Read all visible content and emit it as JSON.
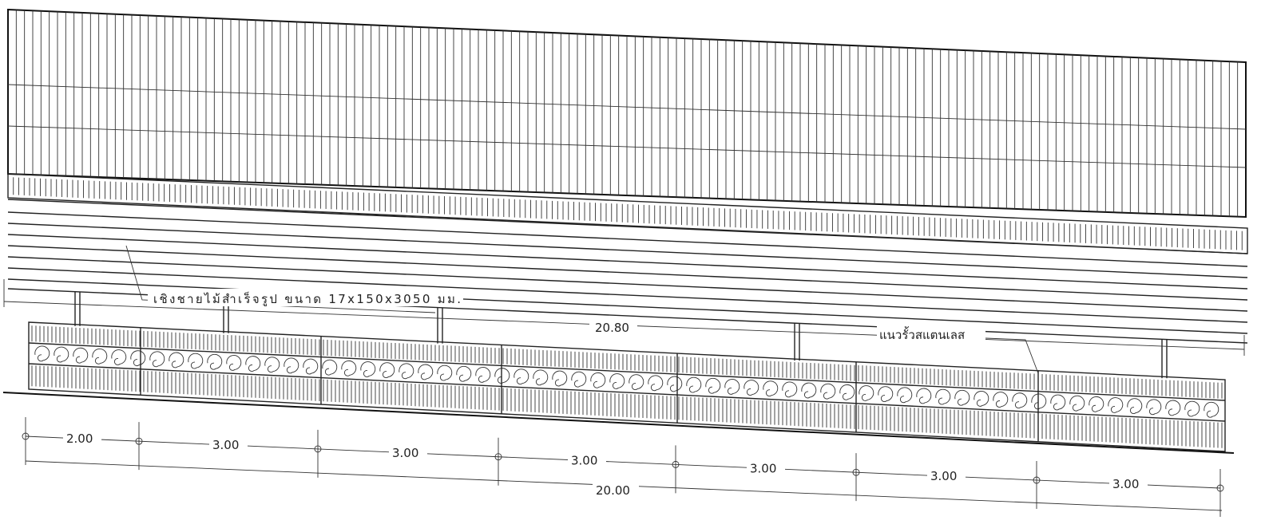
{
  "annotations": {
    "fascia": "เชิงชายไม้สำเร็จรูป  ขนาด 17x150x3050 มม.",
    "fence": "แนวรั้วสแตนเลส",
    "overall_roof": "20.80"
  },
  "dimensions": {
    "segments": [
      "2.00",
      "3.00",
      "3.00",
      "3.00",
      "3.00",
      "3.00",
      "3.00"
    ],
    "total": "20.00"
  },
  "colors": {
    "line": "#222222",
    "paper": "#ffffff"
  }
}
